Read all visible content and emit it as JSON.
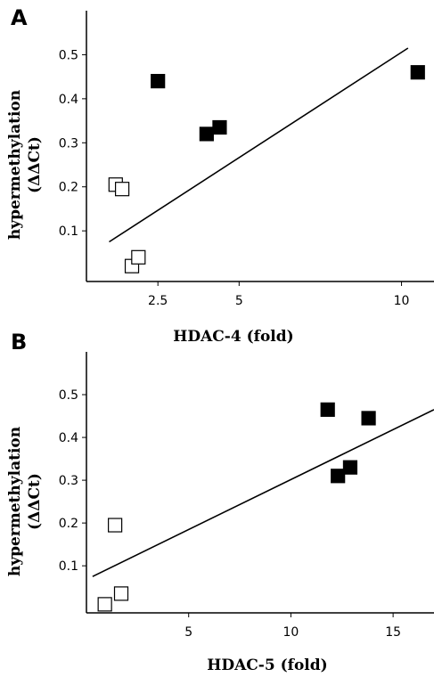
{
  "chart_data": [
    {
      "type": "scatter",
      "panel_label": "A",
      "xlabel": "HDAC-4  (fold)",
      "ylabel": "hypermethylation",
      "ylabel_sub": "(ΔΔCt)",
      "xticks": [
        2.5,
        5,
        10
      ],
      "xtick_labels": [
        "2.5",
        "5",
        "10"
      ],
      "yticks": [
        0.1,
        0.2,
        0.3,
        0.4,
        0.5
      ],
      "ytick_labels": [
        "0.1",
        "0.2",
        "0.3",
        "0.4",
        "0.5"
      ],
      "xlim": [
        0.3,
        11
      ],
      "ylim": [
        -0.015,
        0.6
      ],
      "grid": false,
      "series": [
        {
          "marker": "square-filled",
          "color": "#000000",
          "x": [
            2.5,
            4.0,
            4.4,
            10.5
          ],
          "y": [
            0.44,
            0.32,
            0.335,
            0.46
          ]
        },
        {
          "marker": "square-open",
          "color": "#000000",
          "x": [
            1.2,
            1.4,
            1.7,
            1.9
          ],
          "y": [
            0.205,
            0.195,
            0.02,
            0.04
          ]
        }
      ],
      "trendline": {
        "x": [
          1.0,
          10.2
        ],
        "y": [
          0.075,
          0.515
        ]
      }
    },
    {
      "type": "scatter",
      "panel_label": "B",
      "xlabel": "HDAC-5 (fold)",
      "ylabel": "hypermethylation",
      "ylabel_sub": "(ΔΔCt)",
      "xticks": [
        5,
        10,
        15
      ],
      "xtick_labels": [
        "5",
        "10",
        "15"
      ],
      "yticks": [
        0.1,
        0.2,
        0.3,
        0.4,
        0.5
      ],
      "ytick_labels": [
        "0.1",
        "0.2",
        "0.3",
        "0.4",
        "0.5"
      ],
      "xlim": [
        0,
        17
      ],
      "ylim": [
        -0.01,
        0.6
      ],
      "grid": false,
      "series": [
        {
          "marker": "square-filled",
          "color": "#000000",
          "x": [
            11.8,
            12.3,
            12.9,
            13.8
          ],
          "y": [
            0.465,
            0.31,
            0.33,
            0.445
          ]
        },
        {
          "marker": "square-open",
          "color": "#000000",
          "x": [
            0.9,
            1.4,
            1.7
          ],
          "y": [
            0.01,
            0.195,
            0.035
          ]
        }
      ],
      "trendline": {
        "x": [
          0.3,
          17
        ],
        "y": [
          0.075,
          0.465
        ]
      }
    }
  ]
}
